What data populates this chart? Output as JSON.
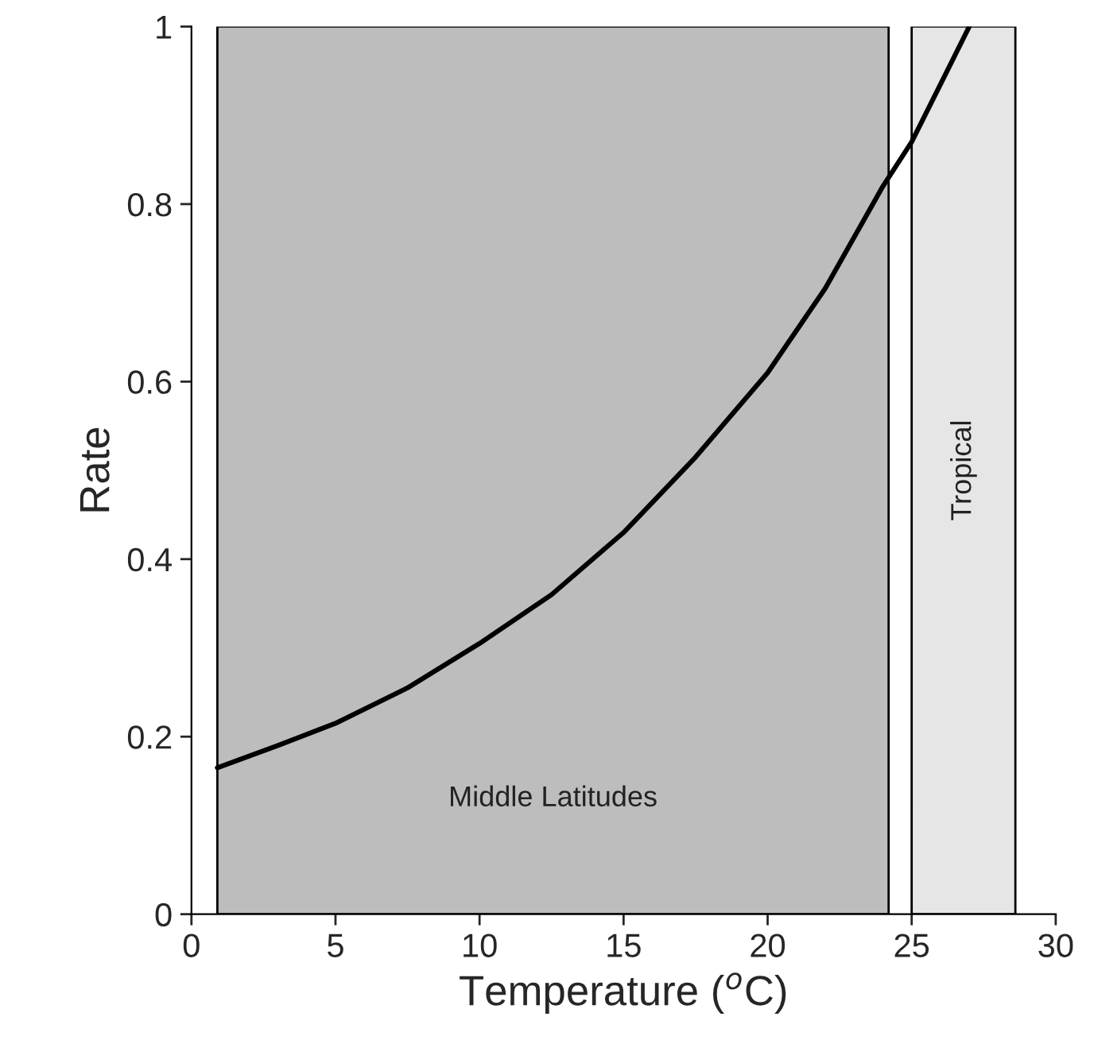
{
  "chart_data": {
    "type": "line",
    "xlabel": "Temperature ($^{o}$C)",
    "ylabel": "Rate",
    "xlim": [
      0,
      30
    ],
    "ylim": [
      0,
      1
    ],
    "xticks": [
      0,
      5,
      10,
      15,
      20,
      25,
      30
    ],
    "yticks": [
      0,
      0.2,
      0.4,
      0.6,
      0.8,
      1
    ],
    "grid": false,
    "legend": false,
    "marker": "none",
    "line_style": "solid",
    "series": [
      {
        "color": "#000000",
        "x": [
          0.9,
          3,
          5,
          7.5,
          10,
          12.5,
          15,
          17.5,
          20,
          22,
          24,
          25,
          26,
          27
        ],
        "values": [
          0.165,
          0.19,
          0.215,
          0.255,
          0.305,
          0.36,
          0.43,
          0.515,
          0.61,
          0.705,
          0.82,
          0.87,
          0.935,
          1.0
        ]
      }
    ],
    "bands": [
      {
        "axis": "x",
        "from": 0.9,
        "to": 24.2,
        "label": "Middle Latitudes",
        "color": "#bdbdbd"
      },
      {
        "axis": "x",
        "from": 25,
        "to": 28.6,
        "label": "Tropical",
        "color": "#e6e6e6"
      }
    ]
  }
}
